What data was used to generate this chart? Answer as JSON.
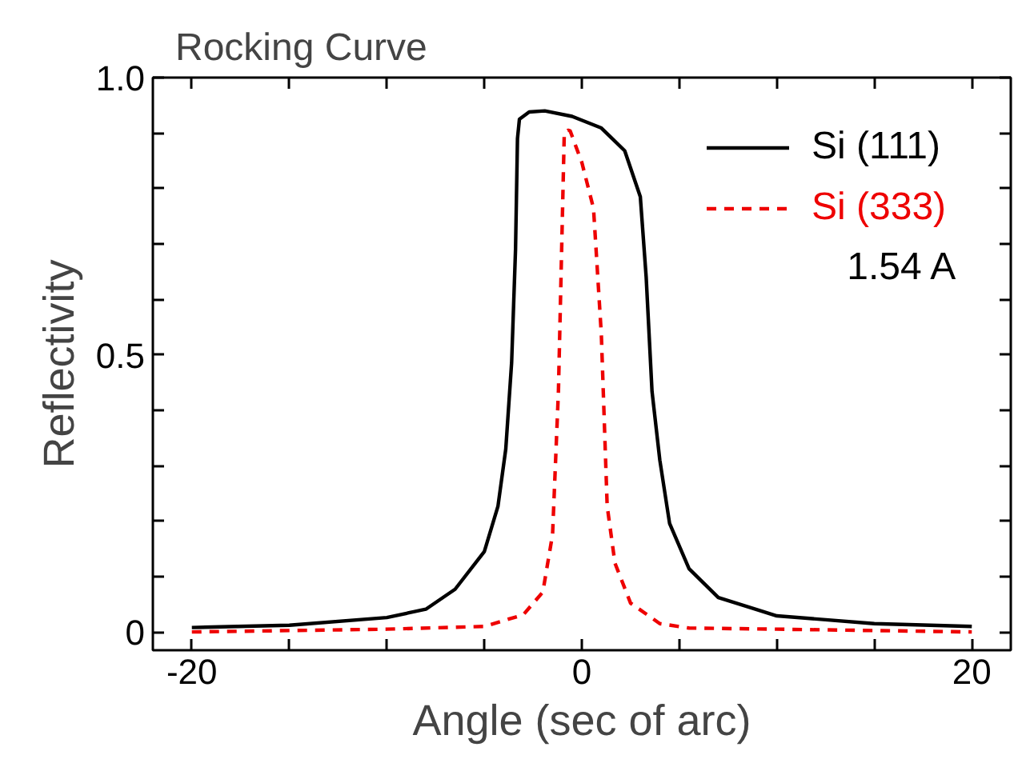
{
  "chart_data": {
    "type": "line",
    "title": "Rocking Curve",
    "xlabel": "Angle (sec of arc)",
    "ylabel": "Reflectivity",
    "xlim": [
      -22,
      22
    ],
    "ylim": [
      -0.033,
      1.0
    ],
    "xticks": [
      -20,
      {
        "value": -15,
        "label": null
      },
      {
        "value": -10,
        "label": null
      },
      {
        "value": -5,
        "label": null
      },
      0,
      {
        "value": 5,
        "label": null
      },
      {
        "value": 10,
        "label": null
      },
      {
        "value": 15,
        "label": null
      },
      20
    ],
    "yticks": [
      0,
      {
        "value": 0.1,
        "label": null
      },
      {
        "value": 0.2,
        "label": null
      },
      {
        "value": 0.3,
        "label": null
      },
      {
        "value": 0.4,
        "label": null
      },
      0.5,
      {
        "value": 0.6,
        "label": null
      },
      {
        "value": 0.7,
        "label": null
      },
      {
        "value": 0.8,
        "label": null
      },
      {
        "value": 0.9,
        "label": null
      },
      {
        "value": 1.0,
        "label": "1.0"
      }
    ],
    "grid": false,
    "legend": "top right",
    "marker": "none",
    "annotations": [
      "1.54 A"
    ],
    "series": [
      {
        "name": "Si (111)",
        "color": "#000000",
        "line_style": "solid",
        "x": [
          -20,
          -15,
          -10,
          -8,
          -6.5,
          -5,
          -4.3,
          -3.9,
          -3.6,
          -3.4,
          -3.3,
          -3.2,
          -2.7,
          -1.9,
          -0.5,
          1,
          2.2,
          3,
          3.3,
          3.6,
          4,
          4.5,
          5.5,
          7,
          10,
          15,
          20
        ],
        "values": [
          0.008,
          0.012,
          0.026,
          0.041,
          0.077,
          0.145,
          0.227,
          0.33,
          0.486,
          0.69,
          0.89,
          0.925,
          0.938,
          0.94,
          0.93,
          0.909,
          0.868,
          0.785,
          0.64,
          0.434,
          0.31,
          0.196,
          0.114,
          0.062,
          0.029,
          0.015,
          0.01
        ]
      },
      {
        "name": "Si (333)",
        "color": "#ee0000",
        "line_style": "dashed",
        "x": [
          -20,
          -10,
          -5,
          -3,
          -2,
          -1.5,
          -1.2,
          -1.0,
          -0.9,
          -0.7,
          -0.6,
          0,
          0.6,
          1.0,
          1.3,
          1.7,
          2.5,
          4,
          5.5,
          10,
          20
        ],
        "values": [
          0.0,
          0.005,
          0.01,
          0.031,
          0.072,
          0.176,
          0.434,
          0.744,
          0.9,
          0.905,
          0.904,
          0.847,
          0.764,
          0.537,
          0.227,
          0.124,
          0.052,
          0.015,
          0.007,
          0.005,
          0.0
        ]
      }
    ]
  }
}
